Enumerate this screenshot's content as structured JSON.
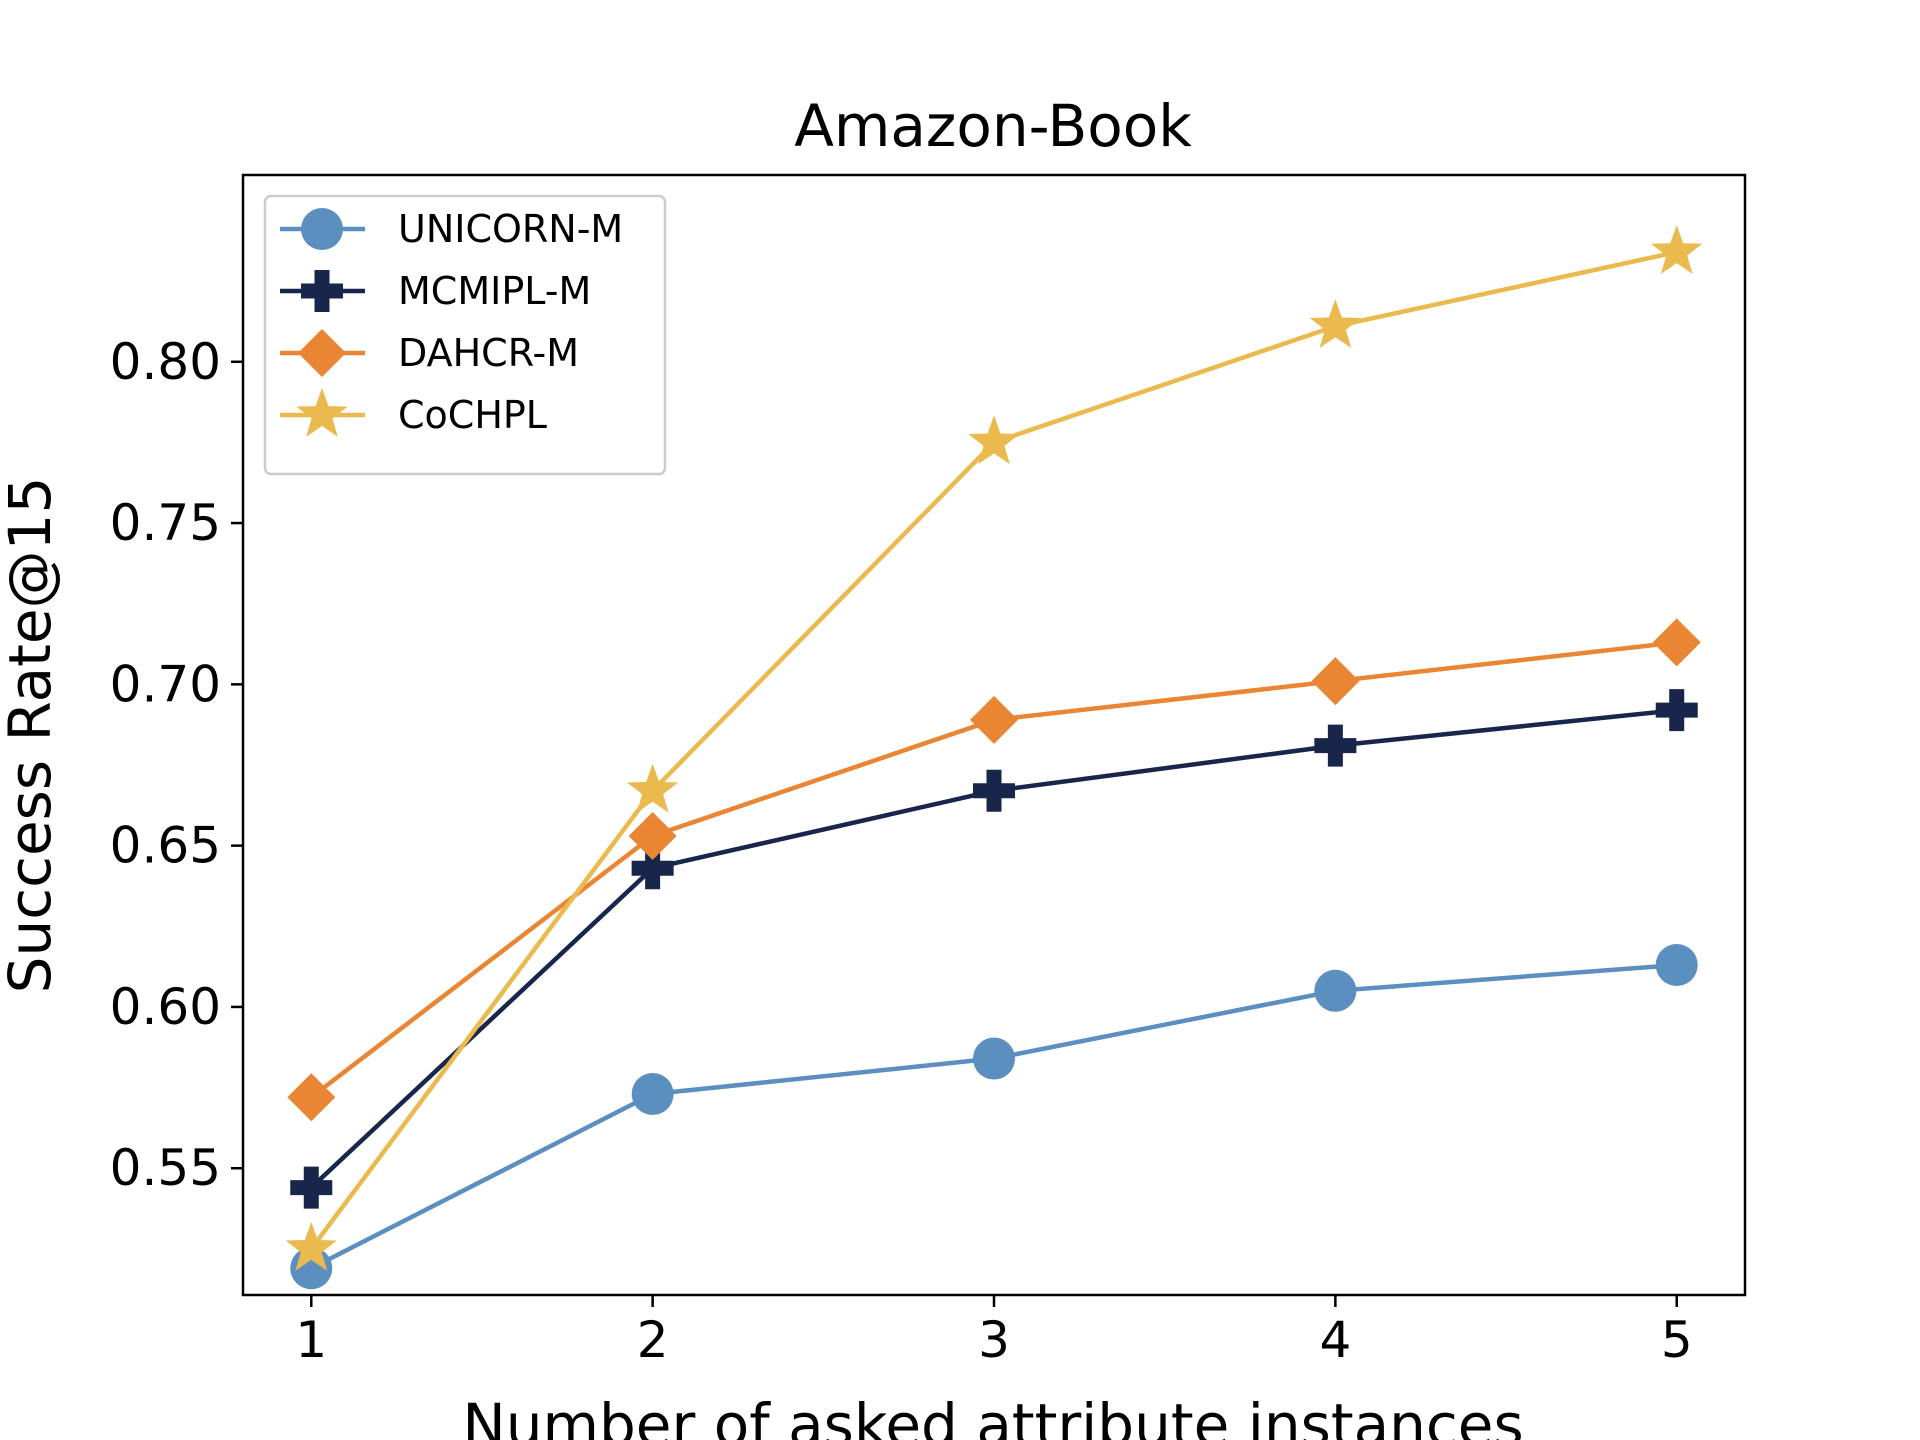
{
  "chart_data": {
    "type": "line",
    "title": "Amazon-Book",
    "xlabel": "Number of asked attribute instances",
    "ylabel": "Success Rate@15",
    "x": [
      1,
      2,
      3,
      4,
      5
    ],
    "x_ticks": [
      "1",
      "2",
      "3",
      "4",
      "5"
    ],
    "y_ticks": [
      "0.55",
      "0.60",
      "0.65",
      "0.70",
      "0.75",
      "0.80"
    ],
    "y_tick_values": [
      0.55,
      0.6,
      0.65,
      0.7,
      0.75,
      0.8
    ],
    "xlim": [
      0.8,
      5.2
    ],
    "ylim": [
      0.5107,
      0.8579
    ],
    "grid": false,
    "legend_position": "top-left",
    "series": [
      {
        "name": "UNICORN-M",
        "color": "#5b8fbf",
        "marker": "circle",
        "values": [
          0.519,
          0.573,
          0.584,
          0.605,
          0.613
        ]
      },
      {
        "name": "MCMIPL-M",
        "color": "#18264b",
        "marker": "plus",
        "values": [
          0.544,
          0.643,
          0.667,
          0.681,
          0.692
        ]
      },
      {
        "name": "DAHCR-M",
        "color": "#e98533",
        "marker": "diamond",
        "values": [
          0.572,
          0.653,
          0.689,
          0.701,
          0.713
        ]
      },
      {
        "name": "CoCHPL",
        "color": "#eaba4f",
        "marker": "star",
        "values": [
          0.525,
          0.667,
          0.775,
          0.811,
          0.834
        ]
      }
    ]
  }
}
